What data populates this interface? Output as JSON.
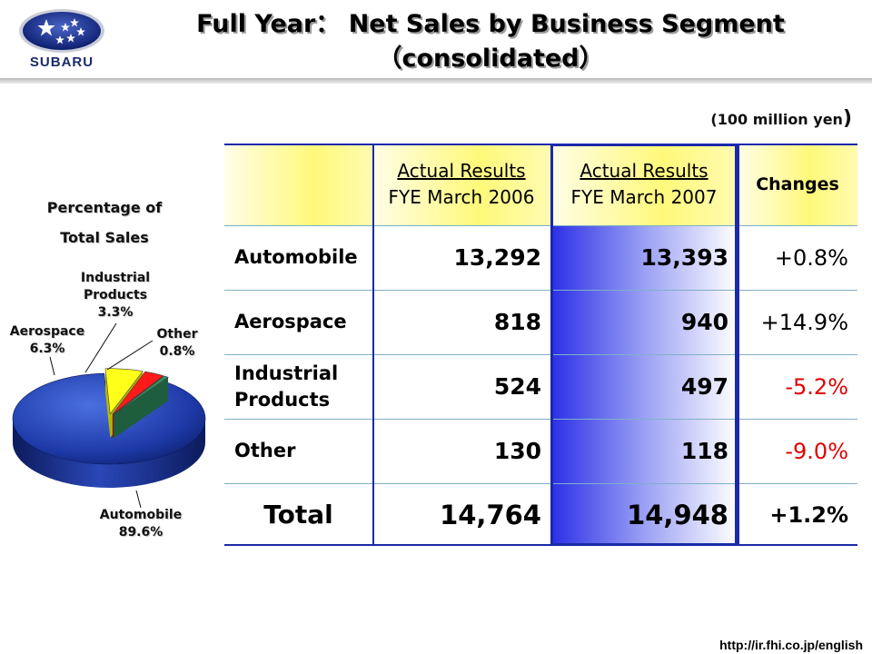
{
  "header": {
    "logo_text": "SUBARU",
    "title_line1": "Full Year： Net Sales by Business Segment",
    "title_line2": "（consolidated）"
  },
  "unit_label": "(100 million yen",
  "unit_close": ")",
  "pie": {
    "title_line1": "Percentage of",
    "title_line2": "Total Sales",
    "labels": {
      "automobile_name": "Automobile",
      "automobile_pct": "89.6%",
      "aerospace_name": "Aerospace",
      "aerospace_pct": "6.3%",
      "industrial_name_1": "Industrial",
      "industrial_name_2": "Products",
      "industrial_pct": "3.3%",
      "other_name": "Other",
      "other_pct": "0.8%"
    }
  },
  "table": {
    "col_2006_line1": "Actual Results",
    "col_2006_line2": "FYE March 2006",
    "col_2007_line1": "Actual Results",
    "col_2007_line2": "FYE March 2007",
    "col_changes": "Changes",
    "rows": [
      {
        "label": "Automobile",
        "v2006": "13,292",
        "v2007": "13,393",
        "change": "+0.8%"
      },
      {
        "label": "Aerospace",
        "v2006": "818",
        "v2007": "940",
        "change": "+14.9%"
      },
      {
        "label_1": "Industrial",
        "label_2": "Products",
        "v2006": "524",
        "v2007": "497",
        "change": "-5.2%"
      },
      {
        "label": "Other",
        "v2006": "130",
        "v2007": "118",
        "change": "-9.0%"
      }
    ],
    "total": {
      "label": "Total",
      "v2006": "14,764",
      "v2007": "14,948",
      "change": "+1.2%"
    }
  },
  "footer_url": "http://ir.fhi.co.jp/english",
  "chart_data": [
    {
      "type": "pie",
      "title": "Percentage of Total Sales",
      "categories": [
        "Automobile",
        "Aerospace",
        "Industrial Products",
        "Other"
      ],
      "values": [
        89.6,
        6.3,
        3.3,
        0.8
      ],
      "colors": [
        "#1f3fbf",
        "#ffff1a",
        "#ff1a1a",
        "#2f8f5f"
      ]
    },
    {
      "type": "table",
      "columns": [
        "Actual Results FYE March 2006",
        "Actual Results FYE March 2007",
        "Changes"
      ],
      "rows": [
        "Automobile",
        "Aerospace",
        "Industrial Products",
        "Other",
        "Total"
      ],
      "values": [
        [
          13292,
          13393,
          0.8
        ],
        [
          818,
          940,
          14.9
        ],
        [
          524,
          497,
          -5.2
        ],
        [
          130,
          118,
          -9.0
        ],
        [
          14764,
          14948,
          1.2
        ]
      ]
    }
  ]
}
